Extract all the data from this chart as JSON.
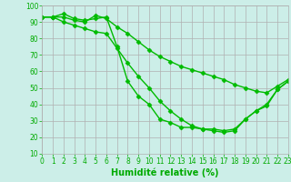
{
  "line1": {
    "x": [
      0,
      1,
      2,
      3,
      4,
      5,
      6,
      7,
      8,
      9,
      10,
      11,
      12,
      13,
      14,
      15,
      16,
      17,
      18,
      19,
      20,
      21,
      22,
      23
    ],
    "y": [
      93,
      93,
      95,
      92,
      91,
      92,
      93,
      75,
      54,
      45,
      40,
      31,
      29,
      26,
      26,
      25,
      25,
      24,
      25,
      31,
      36,
      39,
      49,
      54
    ]
  },
  "line2": {
    "x": [
      0,
      1,
      2,
      3,
      4,
      5,
      6,
      7,
      8,
      9,
      10,
      11,
      12,
      13,
      14,
      15,
      16,
      17,
      18,
      19,
      20,
      21,
      22,
      23
    ],
    "y": [
      93,
      93,
      93,
      91,
      90,
      94,
      92,
      87,
      83,
      78,
      73,
      69,
      66,
      63,
      61,
      59,
      57,
      55,
      52,
      50,
      48,
      47,
      51,
      55
    ]
  },
  "line3": {
    "x": [
      0,
      1,
      2,
      3,
      4,
      5,
      6,
      7,
      8,
      9,
      10,
      11,
      12,
      13,
      14,
      15,
      16,
      17,
      18,
      19,
      20,
      21,
      22,
      23
    ],
    "y": [
      93,
      93,
      90,
      88,
      86,
      84,
      83,
      74,
      65,
      57,
      50,
      42,
      36,
      31,
      27,
      25,
      24,
      23,
      24,
      31,
      36,
      40,
      49,
      54
    ]
  },
  "line_color": "#00bb00",
  "bg_color": "#cceee8",
  "grid_color": "#b0b0b0",
  "xlabel": "Humidité relative (%)",
  "xlabel_color": "#00aa00",
  "xlabel_fontsize": 7,
  "ylim": [
    10,
    100
  ],
  "xlim": [
    0,
    23
  ],
  "yticks": [
    10,
    20,
    30,
    40,
    50,
    60,
    70,
    80,
    90,
    100
  ],
  "xticks": [
    0,
    1,
    2,
    3,
    4,
    5,
    6,
    7,
    8,
    9,
    10,
    11,
    12,
    13,
    14,
    15,
    16,
    17,
    18,
    19,
    20,
    21,
    22,
    23
  ],
  "tick_fontsize": 5.5,
  "marker": "D",
  "marker_size": 2.5,
  "line_width": 1.0
}
